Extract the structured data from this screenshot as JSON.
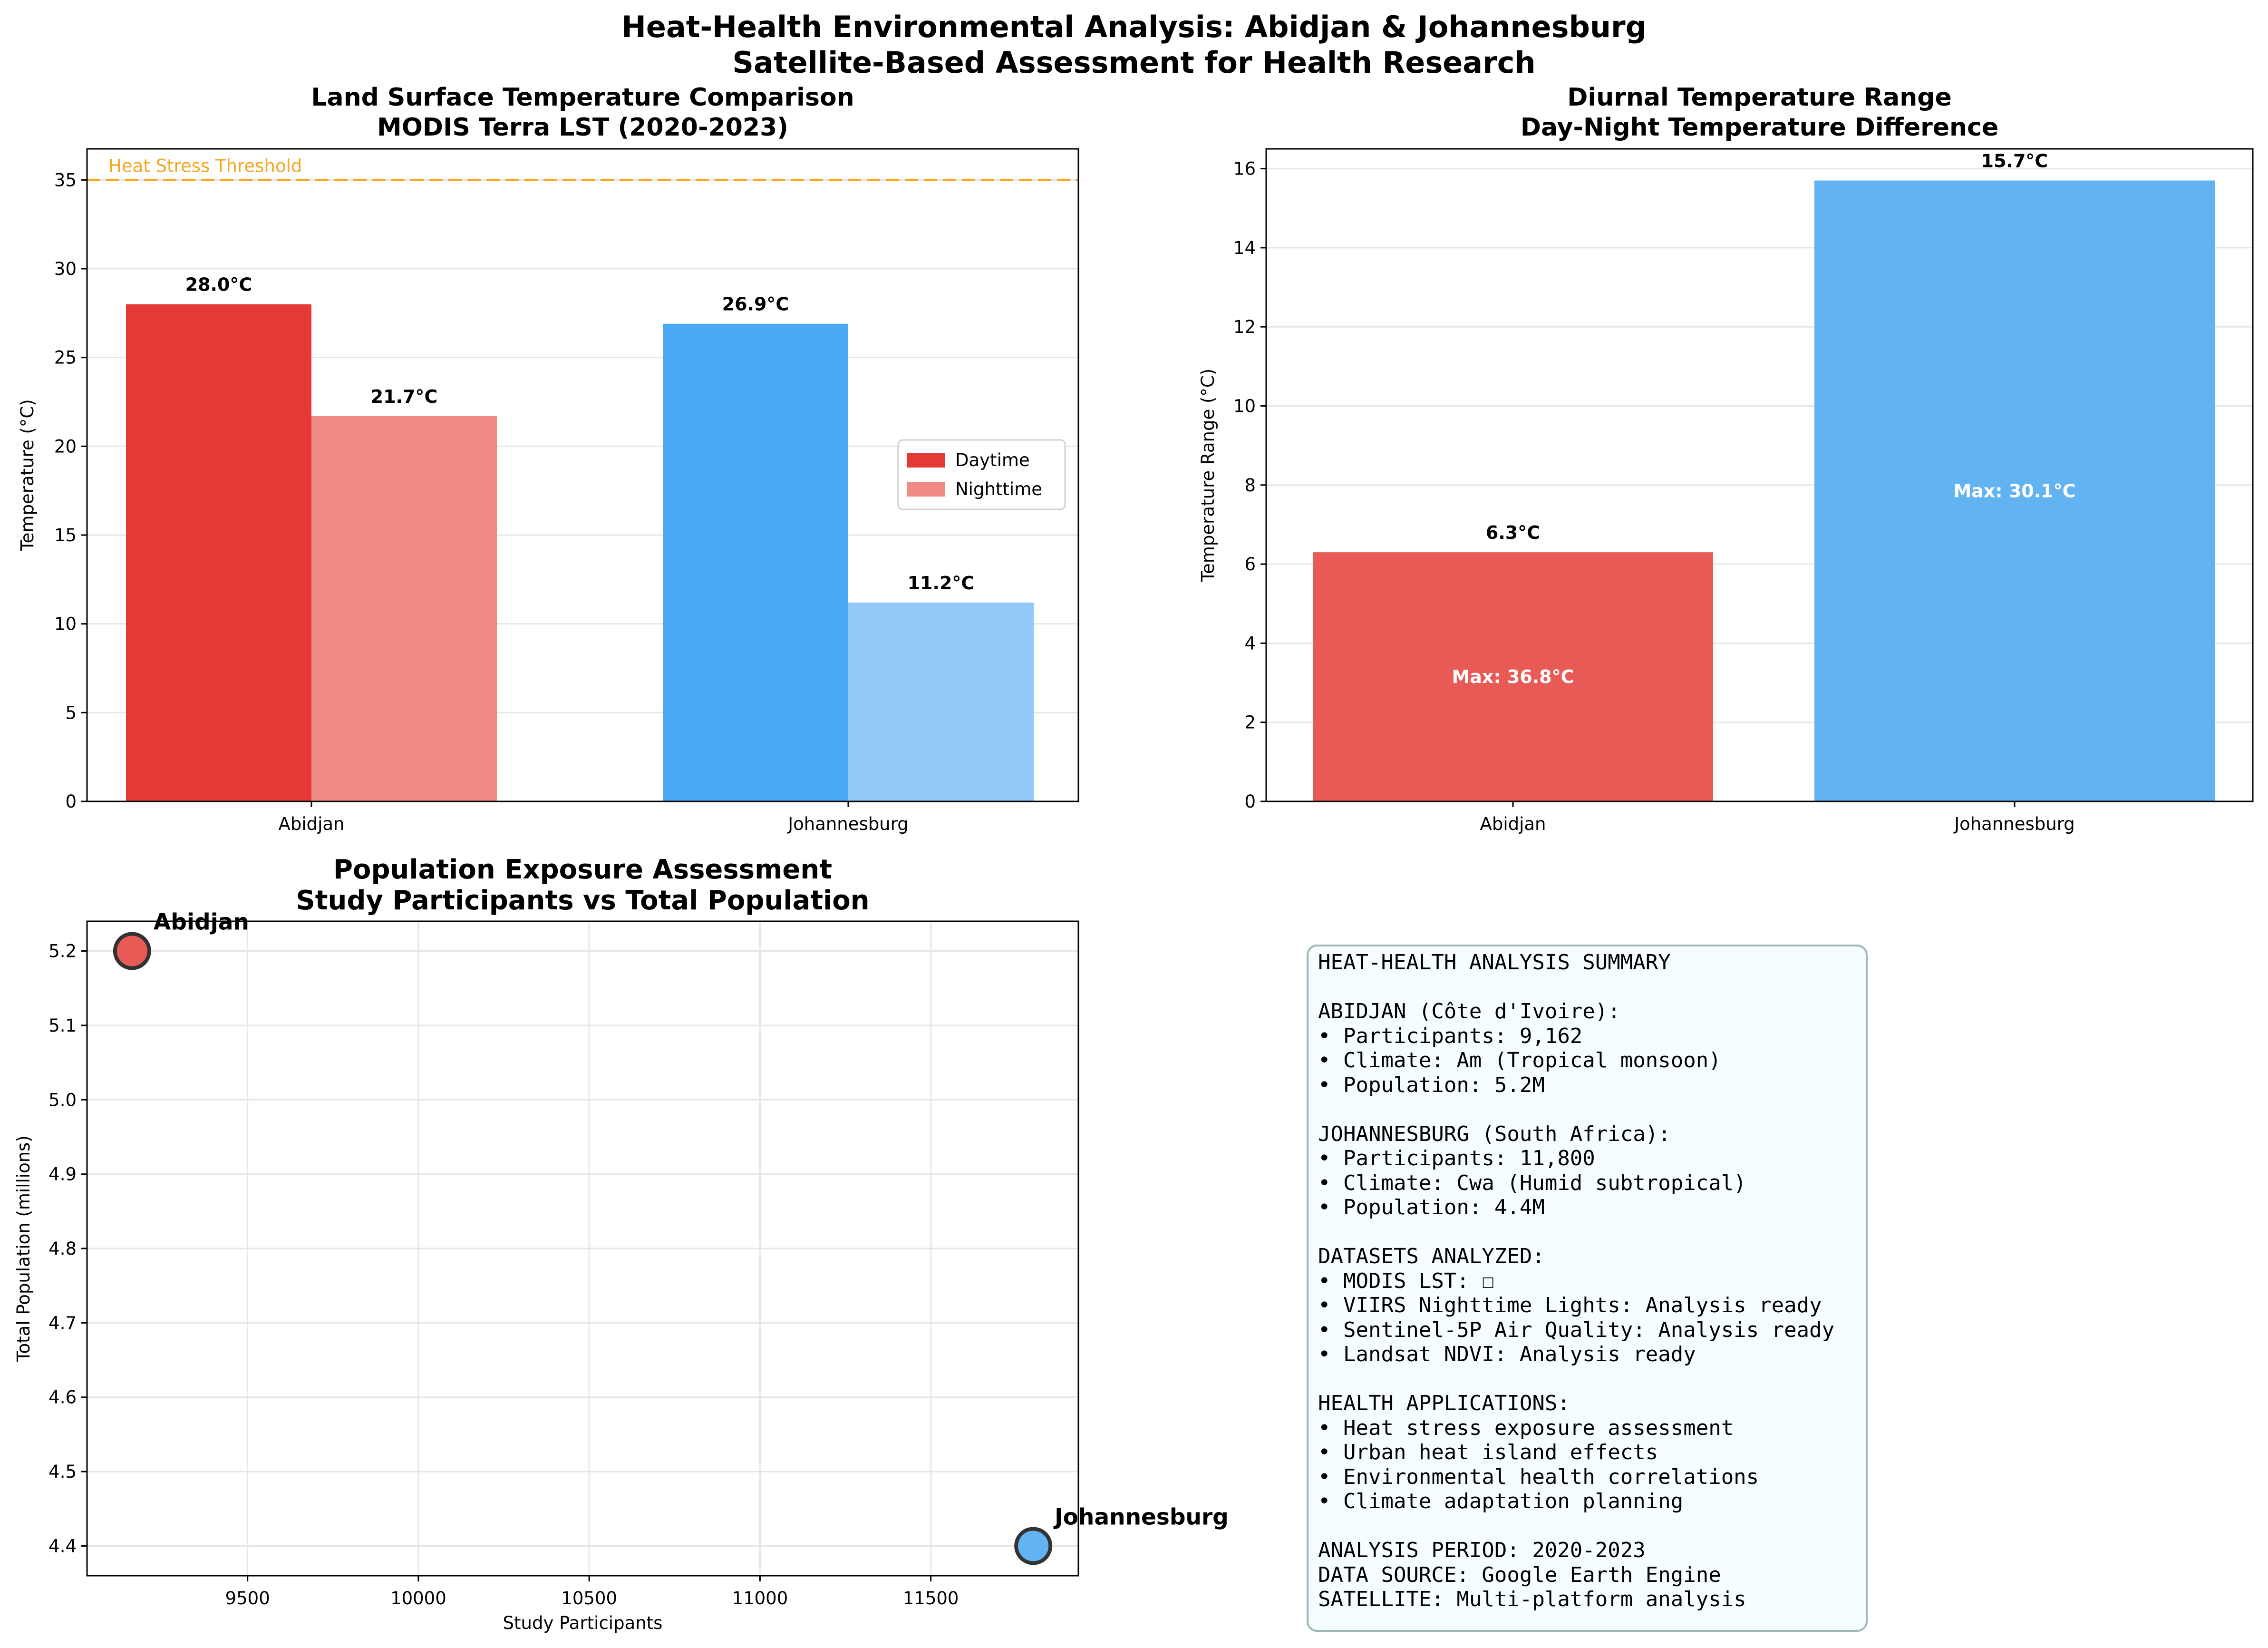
{
  "figure": {
    "title_line1": "Heat-Health Environmental Analysis: Abidjan & Johannesburg",
    "title_line2": "Satellite-Based Assessment for Health Research"
  },
  "colors": {
    "abidjan_day": "#e53935",
    "abidjan_night": "#ef8a85",
    "johannesburg_day": "#4aa9f2",
    "johannesburg_night": "#92c9f6",
    "abidjan_diurnal": "#e85a55",
    "johannesburg_diurnal": "#62b3f2",
    "threshold": "#f5a623"
  },
  "chart_data": [
    {
      "id": "lst",
      "type": "bar",
      "title": "Land Surface Temperature Comparison\nMODIS Terra LST (2020-2023)",
      "ylabel": "Temperature (°C)",
      "xlabel": "",
      "categories": [
        "Abidjan",
        "Johannesburg"
      ],
      "series": [
        {
          "name": "Daytime",
          "values": [
            28.0,
            26.9
          ]
        },
        {
          "name": "Nighttime",
          "values": [
            21.7,
            11.2
          ]
        }
      ],
      "value_labels": [
        [
          "28.0°C",
          "26.9°C"
        ],
        [
          "21.7°C",
          "11.2°C"
        ]
      ],
      "ylim": [
        0,
        36.75
      ],
      "yticks": [
        0,
        5,
        10,
        15,
        20,
        25,
        30,
        35
      ],
      "threshold": {
        "value": 35,
        "label": "Heat Stress Threshold"
      },
      "legend": "right",
      "grid": true
    },
    {
      "id": "diurnal",
      "type": "bar",
      "title": "Diurnal Temperature Range\nDay-Night Temperature Difference",
      "ylabel": "Temperature Range (°C)",
      "xlabel": "",
      "categories": [
        "Abidjan",
        "Johannesburg"
      ],
      "values": [
        6.3,
        15.7
      ],
      "value_labels": [
        "6.3°C",
        "15.7°C"
      ],
      "inner_labels": [
        "Max: 36.8°C",
        "Max: 30.1°C"
      ],
      "ylim": [
        0,
        16.5
      ],
      "yticks": [
        0,
        2,
        4,
        6,
        8,
        10,
        12,
        14,
        16
      ],
      "grid": true
    },
    {
      "id": "exposure",
      "type": "scatter",
      "title": "Population Exposure Assessment\nStudy Participants vs Total Population",
      "xlabel": "Study Participants",
      "ylabel": "Total Population (millions)",
      "points": [
        {
          "label": "Abidjan",
          "x": 9162,
          "y": 5.2
        },
        {
          "label": "Johannesburg",
          "x": 11800,
          "y": 4.4
        }
      ],
      "xlim": [
        9030,
        11932
      ],
      "ylim": [
        4.36,
        5.24
      ],
      "xticks": [
        9500,
        10000,
        10500,
        11000,
        11500
      ],
      "yticks": [
        4.4,
        4.5,
        4.6,
        4.7,
        4.8,
        4.9,
        5.0,
        5.1,
        5.2
      ],
      "grid": true
    }
  ],
  "summary": {
    "lines": [
      "HEAT-HEALTH ANALYSIS SUMMARY",
      "",
      "ABIDJAN (Côte d'Ivoire):",
      "• Participants: 9,162",
      "• Climate: Am (Tropical monsoon)",
      "• Population: 5.2M",
      "",
      "JOHANNESBURG (South Africa):",
      "• Participants: 11,800",
      "• Climate: Cwa (Humid subtropical)",
      "• Population: 4.4M",
      "",
      "DATASETS ANALYZED:",
      "• MODIS LST: ☐",
      "• VIIRS Nighttime Lights: Analysis ready",
      "• Sentinel-5P Air Quality: Analysis ready",
      "• Landsat NDVI: Analysis ready",
      "",
      "HEALTH APPLICATIONS:",
      "• Heat stress exposure assessment",
      "• Urban heat island effects",
      "• Environmental health correlations",
      "• Climate adaptation planning",
      "",
      "ANALYSIS PERIOD: 2020-2023",
      "DATA SOURCE: Google Earth Engine",
      "SATELLITE: Multi-platform analysis"
    ]
  }
}
